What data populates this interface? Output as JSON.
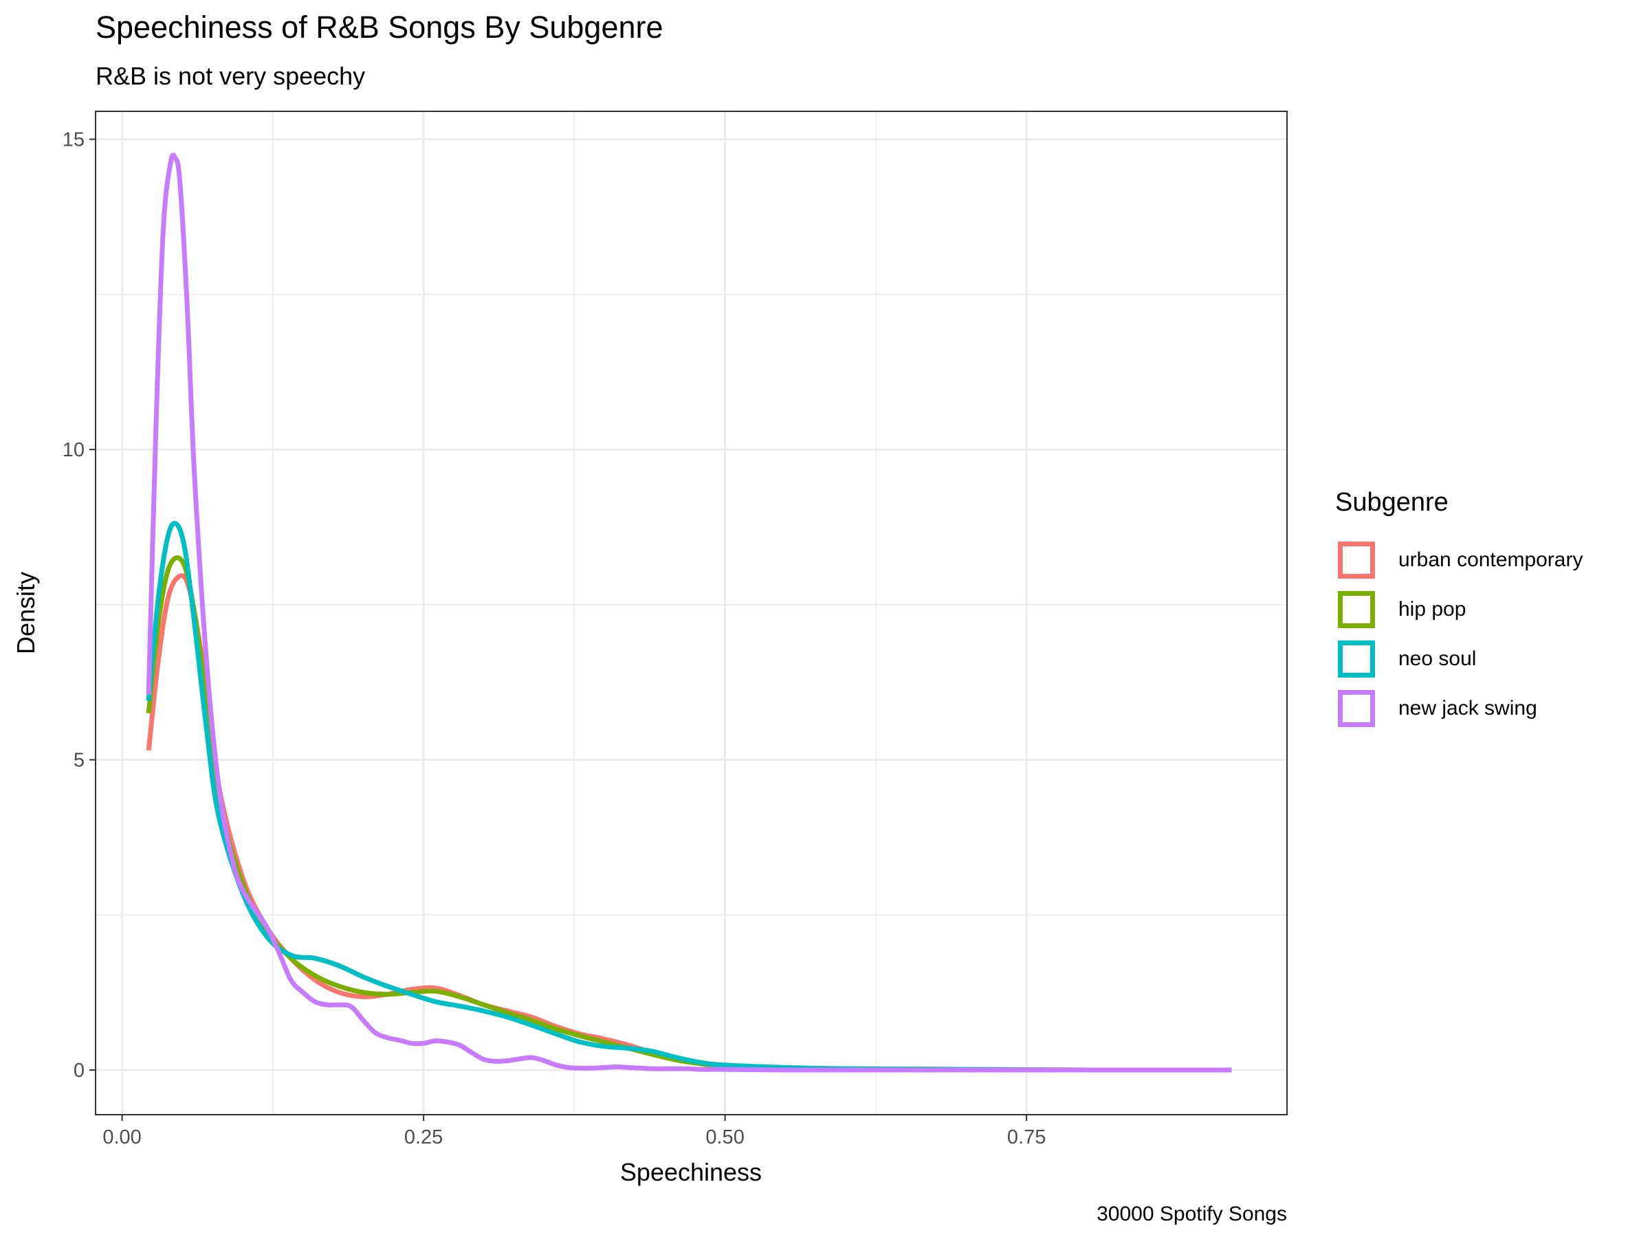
{
  "title": "Speechiness of R&B Songs By Subgenre",
  "subtitle": "R&B is not very speechy",
  "caption": "30000 Spotify Songs",
  "chart_data": {
    "type": "line",
    "xlabel": "Speechiness",
    "ylabel": "Density",
    "xlim": [
      -0.022,
      0.966
    ],
    "ylim": [
      -0.72,
      15.45
    ],
    "xticks": [
      0.0,
      0.25,
      0.5,
      0.75
    ],
    "xtick_labels": [
      "0.00",
      "0.25",
      "0.50",
      "0.75"
    ],
    "yticks": [
      0,
      5,
      10,
      15
    ],
    "ytick_labels": [
      "0",
      "5",
      "10",
      "15"
    ],
    "grid": true,
    "legend_title": "Subgenre",
    "legend_position": "right",
    "series": [
      {
        "name": "urban contemporary",
        "color": "#F8766D",
        "x": [
          0.022,
          0.03,
          0.038,
          0.047,
          0.055,
          0.065,
          0.08,
          0.1,
          0.12,
          0.14,
          0.16,
          0.18,
          0.2,
          0.22,
          0.24,
          0.26,
          0.28,
          0.3,
          0.32,
          0.34,
          0.36,
          0.38,
          0.4,
          0.42,
          0.44,
          0.46,
          0.48,
          0.5,
          0.55,
          0.6,
          0.7,
          0.8,
          0.92
        ],
        "y": [
          5.15,
          6.6,
          7.6,
          7.95,
          7.8,
          6.8,
          4.6,
          3.1,
          2.3,
          1.8,
          1.45,
          1.25,
          1.18,
          1.22,
          1.3,
          1.32,
          1.2,
          1.05,
          0.95,
          0.85,
          0.7,
          0.58,
          0.5,
          0.4,
          0.28,
          0.18,
          0.1,
          0.06,
          0.03,
          0.02,
          0.01,
          0.0,
          0.0
        ]
      },
      {
        "name": "hip pop",
        "color": "#7CAE00",
        "x": [
          0.022,
          0.03,
          0.038,
          0.047,
          0.055,
          0.065,
          0.08,
          0.1,
          0.12,
          0.14,
          0.16,
          0.18,
          0.2,
          0.22,
          0.24,
          0.26,
          0.28,
          0.3,
          0.32,
          0.34,
          0.36,
          0.38,
          0.4,
          0.42,
          0.44,
          0.46,
          0.48,
          0.5,
          0.55,
          0.6,
          0.7,
          0.8,
          0.92
        ],
        "y": [
          5.75,
          7.2,
          8.05,
          8.25,
          7.9,
          6.7,
          4.4,
          3.0,
          2.25,
          1.8,
          1.52,
          1.35,
          1.25,
          1.22,
          1.25,
          1.27,
          1.18,
          1.05,
          0.92,
          0.8,
          0.66,
          0.55,
          0.45,
          0.35,
          0.25,
          0.16,
          0.1,
          0.06,
          0.03,
          0.02,
          0.01,
          0.0,
          0.0
        ]
      },
      {
        "name": "neo soul",
        "color": "#00BFC4",
        "x": [
          0.022,
          0.03,
          0.038,
          0.045,
          0.052,
          0.06,
          0.07,
          0.08,
          0.1,
          0.12,
          0.14,
          0.16,
          0.18,
          0.2,
          0.22,
          0.24,
          0.26,
          0.28,
          0.3,
          0.32,
          0.34,
          0.36,
          0.38,
          0.4,
          0.42,
          0.44,
          0.46,
          0.48,
          0.5,
          0.55,
          0.6,
          0.7,
          0.8,
          0.92
        ],
        "y": [
          5.95,
          7.6,
          8.6,
          8.8,
          8.4,
          7.2,
          5.5,
          4.1,
          2.85,
          2.15,
          1.85,
          1.8,
          1.68,
          1.5,
          1.35,
          1.22,
          1.1,
          1.03,
          0.95,
          0.85,
          0.72,
          0.58,
          0.45,
          0.38,
          0.35,
          0.3,
          0.2,
          0.12,
          0.08,
          0.04,
          0.02,
          0.01,
          0.0,
          0.0
        ]
      },
      {
        "name": "new jack swing",
        "color": "#C77CFF",
        "x": [
          0.022,
          0.028,
          0.034,
          0.04,
          0.044,
          0.048,
          0.054,
          0.06,
          0.07,
          0.08,
          0.09,
          0.1,
          0.12,
          0.13,
          0.14,
          0.15,
          0.16,
          0.17,
          0.18,
          0.19,
          0.2,
          0.21,
          0.22,
          0.23,
          0.24,
          0.25,
          0.26,
          0.27,
          0.28,
          0.29,
          0.3,
          0.31,
          0.32,
          0.33,
          0.34,
          0.35,
          0.36,
          0.37,
          0.38,
          0.39,
          0.4,
          0.41,
          0.42,
          0.43,
          0.44,
          0.45,
          0.46,
          0.47,
          0.48,
          0.5,
          0.55,
          0.6,
          0.7,
          0.8,
          0.92
        ],
        "y": [
          6.05,
          10.3,
          13.5,
          14.6,
          14.7,
          14.3,
          12.3,
          9.6,
          6.6,
          4.6,
          3.5,
          2.9,
          2.3,
          1.9,
          1.45,
          1.25,
          1.1,
          1.05,
          1.05,
          1.02,
          0.8,
          0.6,
          0.52,
          0.48,
          0.43,
          0.43,
          0.47,
          0.45,
          0.4,
          0.28,
          0.17,
          0.14,
          0.15,
          0.18,
          0.2,
          0.15,
          0.08,
          0.04,
          0.03,
          0.03,
          0.04,
          0.05,
          0.04,
          0.03,
          0.02,
          0.02,
          0.02,
          0.02,
          0.01,
          0.01,
          0.0,
          0.0,
          0.0,
          0.0,
          0.0
        ]
      }
    ]
  }
}
